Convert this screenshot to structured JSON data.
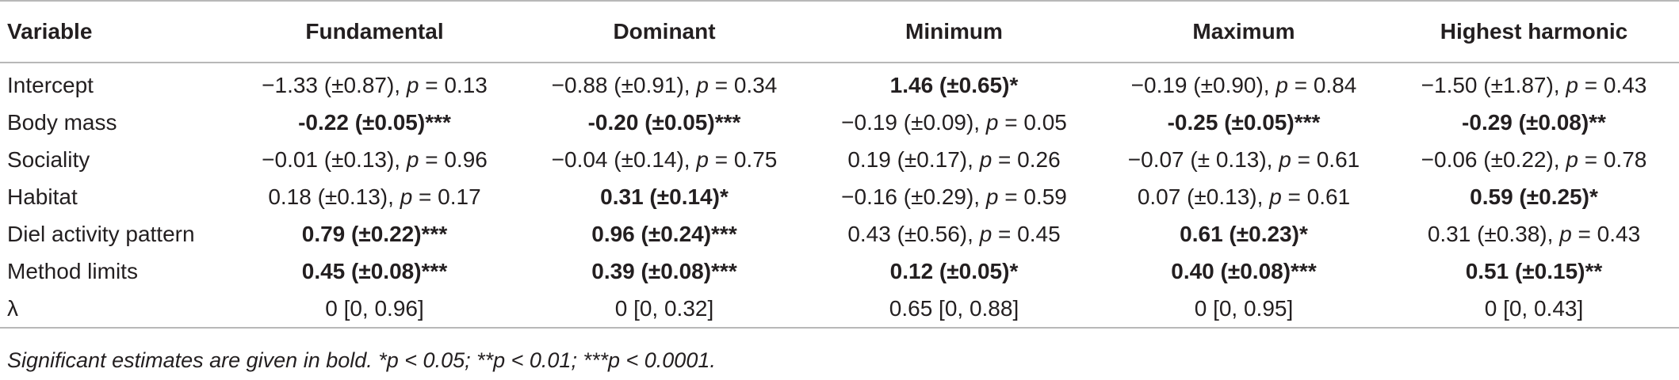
{
  "table": {
    "headers": [
      "Variable",
      "Fundamental",
      "Dominant",
      "Minimum",
      "Maximum",
      "Highest harmonic"
    ],
    "rows": [
      {
        "variable": "Intercept",
        "cells": [
          {
            "estimate": "−1.33 (±0.87), ",
            "p_label": "p",
            "p_value": " = 0.13",
            "bold": false
          },
          {
            "estimate": "−0.88 (±0.91), ",
            "p_label": "p",
            "p_value": " = 0.34",
            "bold": false
          },
          {
            "estimate": "1.46 (±0.65)*",
            "p_label": "",
            "p_value": "",
            "bold": true
          },
          {
            "estimate": "−0.19 (±0.90), ",
            "p_label": "p",
            "p_value": " = 0.84",
            "bold": false
          },
          {
            "estimate": "−1.50 (±1.87), ",
            "p_label": "p",
            "p_value": " = 0.43",
            "bold": false
          }
        ]
      },
      {
        "variable": "Body mass",
        "cells": [
          {
            "estimate": "-0.22 (±0.05)***",
            "p_label": "",
            "p_value": "",
            "bold": true
          },
          {
            "estimate": "-0.20 (±0.05)***",
            "p_label": "",
            "p_value": "",
            "bold": true
          },
          {
            "estimate": "−0.19 (±0.09), ",
            "p_label": "p",
            "p_value": " = 0.05",
            "bold": false
          },
          {
            "estimate": "-0.25 (±0.05)***",
            "p_label": "",
            "p_value": "",
            "bold": true
          },
          {
            "estimate": "-0.29 (±0.08)**",
            "p_label": "",
            "p_value": "",
            "bold": true
          }
        ]
      },
      {
        "variable": "Sociality",
        "cells": [
          {
            "estimate": "−0.01 (±0.13), ",
            "p_label": "p",
            "p_value": " = 0.96",
            "bold": false
          },
          {
            "estimate": "−0.04 (±0.14), ",
            "p_label": "p",
            "p_value": " = 0.75",
            "bold": false
          },
          {
            "estimate": "0.19 (±0.17), ",
            "p_label": "p",
            "p_value": " = 0.26",
            "bold": false
          },
          {
            "estimate": "−0.07 (± 0.13), ",
            "p_label": "p",
            "p_value": " = 0.61",
            "bold": false
          },
          {
            "estimate": "−0.06 (±0.22), ",
            "p_label": "p",
            "p_value": " = 0.78",
            "bold": false
          }
        ]
      },
      {
        "variable": "Habitat",
        "cells": [
          {
            "estimate": "0.18 (±0.13), ",
            "p_label": "p",
            "p_value": " = 0.17",
            "bold": false
          },
          {
            "estimate": "0.31 (±0.14)*",
            "p_label": "",
            "p_value": "",
            "bold": true
          },
          {
            "estimate": "−0.16 (±0.29), ",
            "p_label": "p",
            "p_value": " = 0.59",
            "bold": false
          },
          {
            "estimate": "0.07 (±0.13), ",
            "p_label": "p",
            "p_value": " = 0.61",
            "bold": false
          },
          {
            "estimate": "0.59 (±0.25)*",
            "p_label": "",
            "p_value": "",
            "bold": true
          }
        ]
      },
      {
        "variable": "Diel activity pattern",
        "cells": [
          {
            "estimate": "0.79 (±0.22)***",
            "p_label": "",
            "p_value": "",
            "bold": true
          },
          {
            "estimate": "0.96 (±0.24)***",
            "p_label": "",
            "p_value": "",
            "bold": true
          },
          {
            "estimate": "0.43 (±0.56), ",
            "p_label": "p",
            "p_value": " = 0.45",
            "bold": false
          },
          {
            "estimate": "0.61 (±0.23)*",
            "p_label": "",
            "p_value": "",
            "bold": true
          },
          {
            "estimate": "0.31 (±0.38), ",
            "p_label": "p",
            "p_value": " = 0.43",
            "bold": false
          }
        ]
      },
      {
        "variable": "Method limits",
        "cells": [
          {
            "estimate": "0.45 (±0.08)***",
            "p_label": "",
            "p_value": "",
            "bold": true
          },
          {
            "estimate": "0.39 (±0.08)***",
            "p_label": "",
            "p_value": "",
            "bold": true
          },
          {
            "estimate": "0.12 (±0.05)*",
            "p_label": "",
            "p_value": "",
            "bold": true
          },
          {
            "estimate": "0.40 (±0.08)***",
            "p_label": "",
            "p_value": "",
            "bold": true
          },
          {
            "estimate": "0.51 (±0.15)**",
            "p_label": "",
            "p_value": "",
            "bold": true
          }
        ]
      },
      {
        "variable": "λ",
        "cells": [
          {
            "estimate": "0 [0, 0.96]",
            "p_label": "",
            "p_value": "",
            "bold": false
          },
          {
            "estimate": "0 [0, 0.32]",
            "p_label": "",
            "p_value": "",
            "bold": false
          },
          {
            "estimate": "0.65 [0, 0.88]",
            "p_label": "",
            "p_value": "",
            "bold": false
          },
          {
            "estimate": "0 [0, 0.95]",
            "p_label": "",
            "p_value": "",
            "bold": false
          },
          {
            "estimate": "0 [0, 0.43]",
            "p_label": "",
            "p_value": "",
            "bold": false
          }
        ]
      }
    ]
  },
  "footnote": "Significant estimates are given in bold. *p < 0.05; **p < 0.01; ***p < 0.0001."
}
